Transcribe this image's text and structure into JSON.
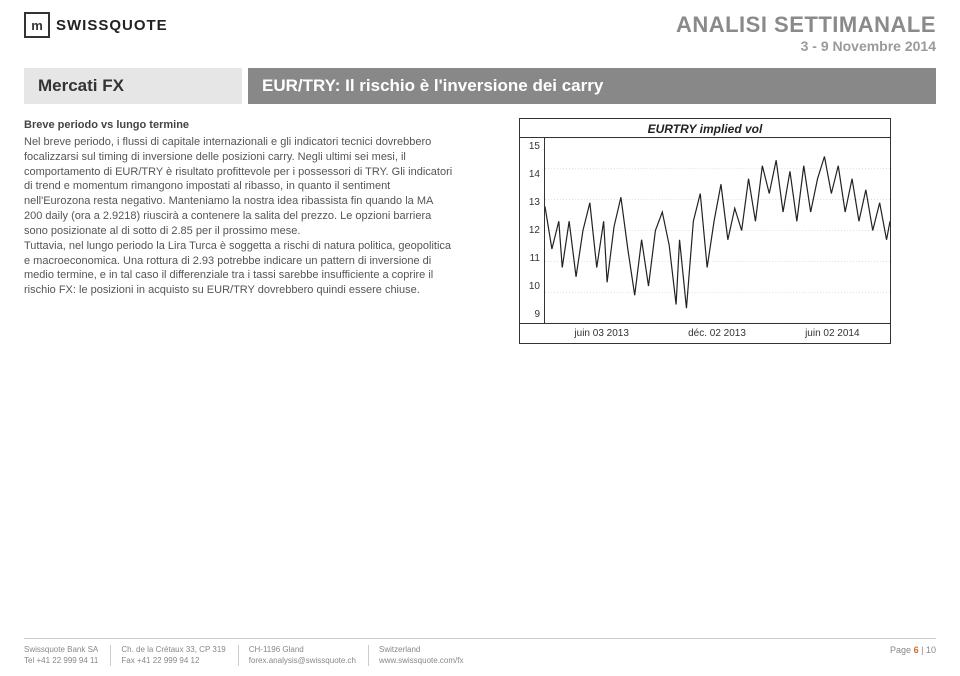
{
  "header": {
    "brand_name": "SWISSQUOTE",
    "doc_title": "ANALISI SETTIMANALE",
    "doc_date": "3 - 9 Novembre 2014"
  },
  "titlebar": {
    "section": "Mercati FX",
    "article": "EUR/TRY: Il rischio è l'inversione dei carry"
  },
  "body": {
    "subheading": "Breve periodo vs lungo termine",
    "paragraph": "Nel breve periodo, i flussi di capitale internazionali e gli indicatori tecnici dovrebbero focalizzarsi sul timing di inversione delle posizioni carry. Negli ultimi sei mesi, il comportamento di EUR/TRY è risultato profittevole per i possessori di TRY. Gli indicatori di trend e momentum rimangono impostati al ribasso, in quanto il sentiment nell'Eurozona resta negativo. Manteniamo la nostra idea ribassista fin quando la MA 200 daily (ora a 2.9218) riuscirà a contenere la salita del prezzo. Le opzioni barriera sono posizionate al di sotto di 2.85 per il prossimo mese.\nTuttavia, nel lungo periodo la Lira Turca è soggetta a rischi di natura politica, geopolitica e macroeconomica. Una rottura di 2.93 potrebbe indicare un pattern di inversione di medio termine, e in tal caso il differenziale tra i tassi sarebbe insufficiente a coprire il rischio FX: le posizioni in acquisto su EUR/TRY dovrebbero quindi essere chiuse."
  },
  "chart": {
    "title": "EURTRY implied vol",
    "ylim": [
      9,
      15
    ],
    "yticks": [
      "15",
      "14",
      "13",
      "12",
      "11",
      "10",
      "9"
    ],
    "xticks": [
      "juin 03 2013",
      "déc. 02 2013",
      "juin 02 2014"
    ],
    "line_color": "#222222",
    "box_border": "#333333",
    "background": "#ffffff",
    "series_norm": [
      [
        0.0,
        0.63
      ],
      [
        0.02,
        0.4
      ],
      [
        0.04,
        0.55
      ],
      [
        0.05,
        0.3
      ],
      [
        0.07,
        0.55
      ],
      [
        0.09,
        0.25
      ],
      [
        0.11,
        0.5
      ],
      [
        0.13,
        0.65
      ],
      [
        0.15,
        0.3
      ],
      [
        0.17,
        0.55
      ],
      [
        0.18,
        0.22
      ],
      [
        0.2,
        0.52
      ],
      [
        0.22,
        0.68
      ],
      [
        0.24,
        0.4
      ],
      [
        0.26,
        0.15
      ],
      [
        0.28,
        0.45
      ],
      [
        0.3,
        0.2
      ],
      [
        0.32,
        0.5
      ],
      [
        0.34,
        0.6
      ],
      [
        0.36,
        0.42
      ],
      [
        0.38,
        0.1
      ],
      [
        0.39,
        0.45
      ],
      [
        0.41,
        0.08
      ],
      [
        0.43,
        0.55
      ],
      [
        0.45,
        0.7
      ],
      [
        0.47,
        0.3
      ],
      [
        0.49,
        0.55
      ],
      [
        0.51,
        0.75
      ],
      [
        0.53,
        0.45
      ],
      [
        0.55,
        0.62
      ],
      [
        0.57,
        0.5
      ],
      [
        0.59,
        0.78
      ],
      [
        0.61,
        0.55
      ],
      [
        0.63,
        0.85
      ],
      [
        0.65,
        0.7
      ],
      [
        0.67,
        0.88
      ],
      [
        0.69,
        0.6
      ],
      [
        0.71,
        0.82
      ],
      [
        0.73,
        0.55
      ],
      [
        0.75,
        0.85
      ],
      [
        0.77,
        0.6
      ],
      [
        0.79,
        0.78
      ],
      [
        0.81,
        0.9
      ],
      [
        0.83,
        0.7
      ],
      [
        0.85,
        0.85
      ],
      [
        0.87,
        0.6
      ],
      [
        0.89,
        0.78
      ],
      [
        0.91,
        0.55
      ],
      [
        0.93,
        0.72
      ],
      [
        0.95,
        0.5
      ],
      [
        0.97,
        0.65
      ],
      [
        0.99,
        0.45
      ],
      [
        1.0,
        0.55
      ]
    ]
  },
  "footer": {
    "col1": {
      "line1": "Swissquote Bank SA",
      "line2": "Tel +41 22 999 94 11"
    },
    "col2": {
      "line1": "Ch. de la Crétaux 33, CP 319",
      "line2": "Fax +41 22 999 94 12"
    },
    "col3": {
      "line1": "CH-1196 Gland",
      "line2": "forex.analysis@swissquote.ch"
    },
    "col4": {
      "line1": "Switzerland",
      "line2": "www.swissquote.com/fx"
    },
    "page_label": "Page",
    "page_current": "6",
    "page_sep": "|",
    "page_total": "10"
  }
}
